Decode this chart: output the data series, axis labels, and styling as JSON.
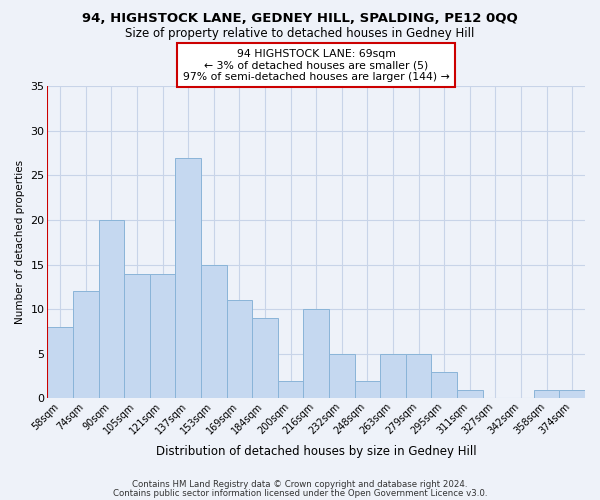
{
  "title": "94, HIGHSTOCK LANE, GEDNEY HILL, SPALDING, PE12 0QQ",
  "subtitle": "Size of property relative to detached houses in Gedney Hill",
  "xlabel": "Distribution of detached houses by size in Gedney Hill",
  "ylabel": "Number of detached properties",
  "footer_line1": "Contains HM Land Registry data © Crown copyright and database right 2024.",
  "footer_line2": "Contains public sector information licensed under the Open Government Licence v3.0.",
  "categories": [
    "58sqm",
    "74sqm",
    "90sqm",
    "105sqm",
    "121sqm",
    "137sqm",
    "153sqm",
    "169sqm",
    "184sqm",
    "200sqm",
    "216sqm",
    "232sqm",
    "248sqm",
    "263sqm",
    "279sqm",
    "295sqm",
    "311sqm",
    "327sqm",
    "342sqm",
    "358sqm",
    "374sqm"
  ],
  "values": [
    8,
    12,
    20,
    14,
    14,
    27,
    15,
    11,
    9,
    2,
    10,
    5,
    2,
    5,
    5,
    3,
    1,
    0,
    0,
    1,
    1
  ],
  "bar_color": "#c5d8f0",
  "bar_edge_color": "#8ab4d8",
  "annotation_line1": "94 HIGHSTOCK LANE: 69sqm",
  "annotation_line2": "← 3% of detached houses are smaller (5)",
  "annotation_line3": "97% of semi-detached houses are larger (144) →",
  "annotation_box_color": "white",
  "annotation_box_edge_color": "#cc0000",
  "marker_line_color": "#cc0000",
  "ylim": [
    0,
    35
  ],
  "yticks": [
    0,
    5,
    10,
    15,
    20,
    25,
    30,
    35
  ],
  "bg_color": "#eef2f9",
  "plot_bg_color": "#eef2f9",
  "grid_color": "#c8d4e8",
  "title_fontsize": 9.5,
  "subtitle_fontsize": 8.5
}
